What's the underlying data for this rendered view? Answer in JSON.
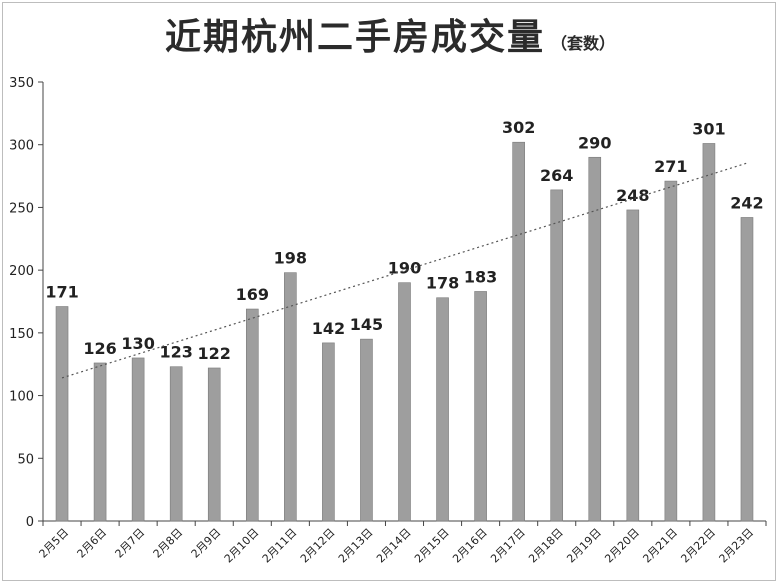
{
  "title": "近期杭州二手房成交量",
  "subtitle": "（套数）",
  "chart_data": {
    "type": "bar",
    "categories": [
      "2月5日",
      "2月6日",
      "2月7日",
      "2月8日",
      "2月9日",
      "2月10日",
      "2月11日",
      "2月12日",
      "2月13日",
      "2月14日",
      "2月15日",
      "2月16日",
      "2月17日",
      "2月18日",
      "2月19日",
      "2月20日",
      "2月21日",
      "2月22日",
      "2月23日"
    ],
    "values": [
      171,
      126,
      130,
      123,
      122,
      169,
      198,
      142,
      145,
      190,
      178,
      183,
      302,
      264,
      290,
      248,
      271,
      301,
      242
    ],
    "ylim": [
      0,
      350
    ],
    "yticks": [
      0,
      50,
      100,
      150,
      200,
      250,
      300,
      350
    ],
    "trendline": true,
    "data_labels": true,
    "grid": false,
    "bar_color": "#9e9e9e",
    "text_color": "#222222"
  }
}
